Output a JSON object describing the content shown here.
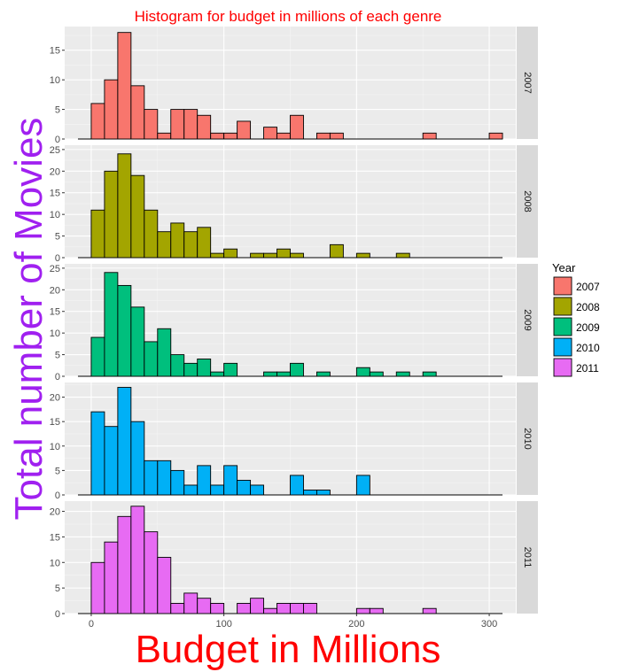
{
  "title": "Histogram for budget in millions of each genre",
  "xlabel": "Budget in Millions",
  "ylabel": "Total number of Movies",
  "legend": {
    "title": "Year",
    "placement": "right",
    "items": [
      {
        "label": "2007",
        "color": "#F8766D"
      },
      {
        "label": "2008",
        "color": "#A3A500"
      },
      {
        "label": "2009",
        "color": "#00BF7D"
      },
      {
        "label": "2010",
        "color": "#00B0F6"
      },
      {
        "label": "2011",
        "color": "#E76BF3"
      }
    ]
  },
  "colors": {
    "title": "#FF0000",
    "xlabel": "#FF0000",
    "ylabel": "#A020F0",
    "panel_bg": "#EBEBEB",
    "strip_bg": "#D9D9D9"
  },
  "chart_data": {
    "type": "bar",
    "subtype": "histogram_faceted",
    "title": "Histogram for budget in millions of each genre",
    "xlabel": "Budget in Millions",
    "ylabel": "Total number of Movies",
    "xlim": [
      -20,
      320
    ],
    "x_ticks": [
      0,
      100,
      200,
      300
    ],
    "grid": true,
    "bin_width": 10,
    "bin_starts": [
      0,
      10,
      20,
      30,
      40,
      50,
      60,
      70,
      80,
      90,
      100,
      110,
      120,
      130,
      140,
      150,
      160,
      170,
      180,
      190,
      200,
      210,
      220,
      230,
      240,
      250,
      260,
      270,
      280,
      290,
      300
    ],
    "baseline_range": [
      -10,
      310
    ],
    "series": [
      {
        "name": "2007",
        "color": "#F8766D",
        "ylim": [
          0,
          19
        ],
        "y_ticks": [
          0,
          5,
          10,
          15
        ],
        "counts": [
          6,
          10,
          18,
          9,
          5,
          1,
          5,
          5,
          4,
          1,
          1,
          3,
          0,
          2,
          1,
          4,
          0,
          1,
          1,
          0,
          0,
          0,
          0,
          0,
          0,
          1,
          0,
          0,
          0,
          0,
          1
        ]
      },
      {
        "name": "2008",
        "color": "#A3A500",
        "ylim": [
          0,
          26
        ],
        "y_ticks": [
          0,
          5,
          10,
          15,
          20,
          25
        ],
        "counts": [
          11,
          20,
          24,
          19,
          11,
          6,
          8,
          6,
          7,
          1,
          2,
          0,
          1,
          1,
          2,
          1,
          0,
          0,
          3,
          0,
          1,
          0,
          0,
          1,
          0,
          0,
          0,
          0,
          0,
          0,
          0
        ]
      },
      {
        "name": "2009",
        "color": "#00BF7D",
        "ylim": [
          0,
          26
        ],
        "y_ticks": [
          0,
          5,
          10,
          15,
          20,
          25
        ],
        "counts": [
          9,
          24,
          21,
          16,
          8,
          11,
          5,
          3,
          4,
          1,
          3,
          0,
          0,
          1,
          1,
          3,
          0,
          1,
          0,
          0,
          2,
          1,
          0,
          1,
          0,
          1,
          0,
          0,
          0,
          0,
          0
        ]
      },
      {
        "name": "2010",
        "color": "#00B0F6",
        "ylim": [
          0,
          23
        ],
        "y_ticks": [
          0,
          5,
          10,
          15,
          20
        ],
        "counts": [
          17,
          14,
          22,
          15,
          7,
          7,
          5,
          2,
          6,
          2,
          6,
          3,
          2,
          0,
          0,
          4,
          1,
          1,
          0,
          0,
          4,
          0,
          0,
          0,
          0,
          0,
          0,
          0,
          0,
          0,
          0
        ]
      },
      {
        "name": "2011",
        "color": "#E76BF3",
        "ylim": [
          0,
          22
        ],
        "y_ticks": [
          0,
          5,
          10,
          15,
          20
        ],
        "counts": [
          10,
          14,
          19,
          21,
          16,
          11,
          2,
          4,
          3,
          2,
          0,
          2,
          3,
          1,
          2,
          2,
          2,
          0,
          0,
          0,
          1,
          1,
          0,
          0,
          0,
          1,
          0,
          0,
          0,
          0,
          0
        ]
      }
    ]
  }
}
